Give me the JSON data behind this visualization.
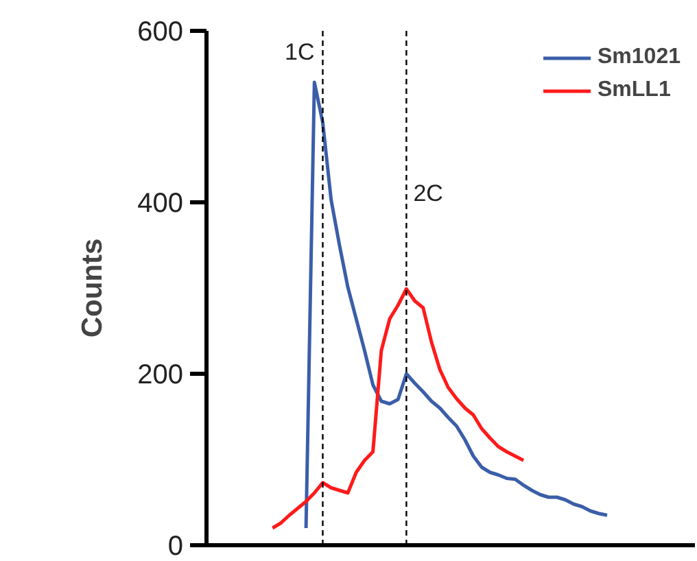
{
  "chart_data": {
    "type": "line",
    "ylabel": "Counts",
    "categories": [
      null,
      null,
      null,
      null,
      null,
      null,
      null,
      null,
      null,
      null,
      null,
      null,
      null,
      null,
      null,
      null,
      null,
      null,
      null,
      null,
      null,
      null,
      null,
      null,
      null,
      null,
      null,
      null,
      null,
      null,
      null,
      null,
      null,
      null,
      null,
      null,
      null,
      null,
      null,
      null,
      null
    ],
    "series": [
      {
        "name": "Sm1021",
        "color": "#3b5ea8",
        "values": [
          null,
          null,
          null,
          null,
          20,
          540,
          493,
          403,
          350,
          301,
          264,
          227,
          187,
          168,
          165,
          170,
          200,
          189,
          179,
          168,
          160,
          149,
          139,
          123,
          104,
          91,
          85,
          82,
          78,
          77,
          70,
          64,
          59,
          56,
          56,
          53,
          48,
          45,
          40,
          37,
          35
        ]
      },
      {
        "name": "SmLL1",
        "color": "#ff1a1a",
        "values": [
          20,
          26,
          35,
          43,
          51,
          61,
          73,
          67,
          64,
          61,
          85,
          99,
          109,
          227,
          264,
          280,
          299,
          285,
          277,
          237,
          205,
          184,
          171,
          160,
          152,
          136,
          125,
          115,
          109,
          104,
          99,
          null,
          null,
          null,
          null,
          null,
          null,
          null,
          null,
          null,
          null
        ]
      }
    ],
    "ylim": [
      0,
      600
    ],
    "yticks": [
      0,
      200,
      400,
      600
    ],
    "tick_labels": "y",
    "grid": false,
    "legend": "top right",
    "marker": "none",
    "line_style": "solid",
    "annotations": [
      "1C",
      "2C"
    ]
  }
}
